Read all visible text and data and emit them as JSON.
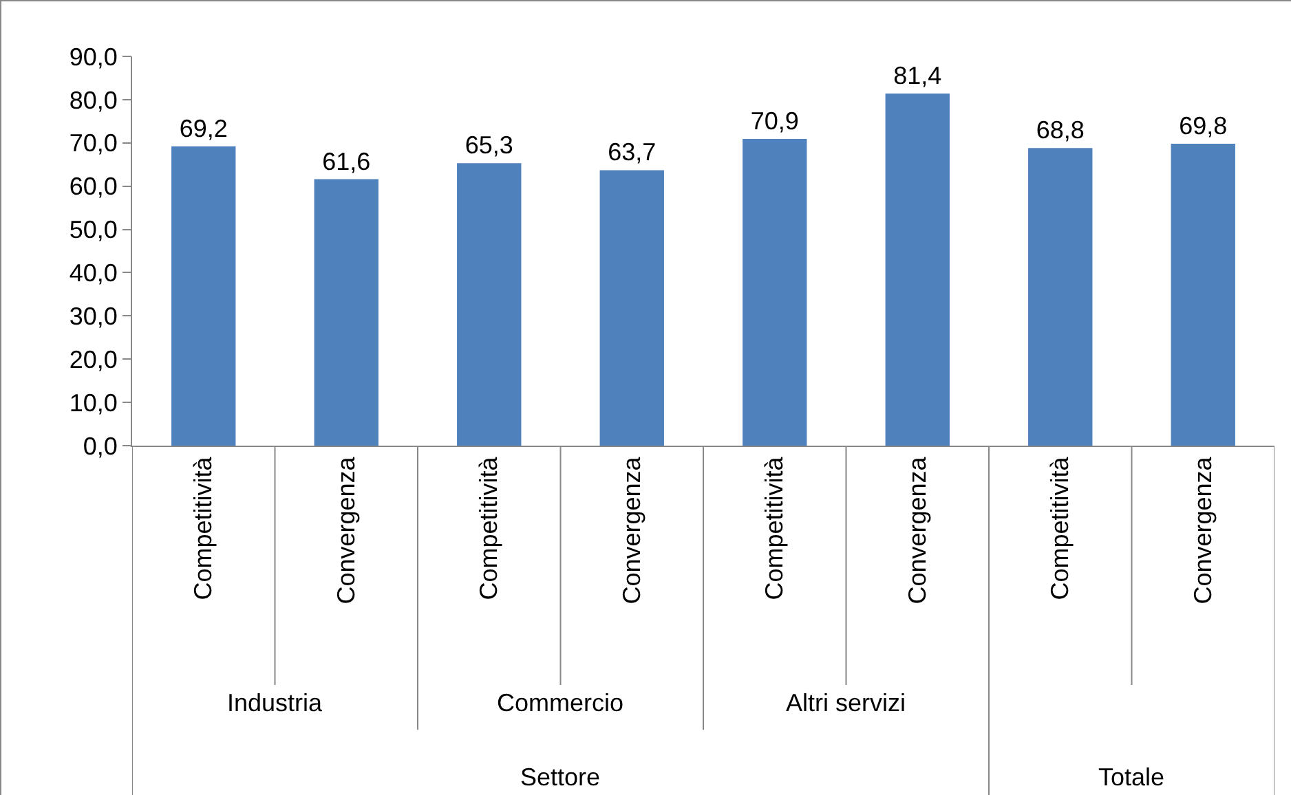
{
  "chart_data": {
    "type": "bar",
    "categories": [
      "Competitività",
      "Convergenza",
      "Competitività",
      "Convergenza",
      "Competitività",
      "Convergenza",
      "Competitività",
      "Convergenza"
    ],
    "values": [
      69.2,
      61.6,
      65.3,
      63.7,
      70.9,
      81.4,
      68.8,
      69.8
    ],
    "value_labels": [
      "69,2",
      "61,6",
      "65,3",
      "63,7",
      "70,9",
      "81,4",
      "68,8",
      "69,8"
    ],
    "color": "#4f81bd",
    "ylim": [
      0,
      90
    ],
    "yticks": [
      {
        "value": 0,
        "label": "0,0"
      },
      {
        "value": 10,
        "label": "10,0"
      },
      {
        "value": 20,
        "label": "20,0"
      },
      {
        "value": 30,
        "label": "30,0"
      },
      {
        "value": 40,
        "label": "40,0"
      },
      {
        "value": 50,
        "label": "50,0"
      },
      {
        "value": 60,
        "label": "60,0"
      },
      {
        "value": 70,
        "label": "70,0"
      },
      {
        "value": 80,
        "label": "80,0"
      },
      {
        "value": 90,
        "label": "90,0"
      }
    ],
    "grid": false,
    "legend": false,
    "annotations": [
      "Industria",
      "Commercio",
      "Altri servizi",
      "Settore",
      "Totale"
    ]
  }
}
